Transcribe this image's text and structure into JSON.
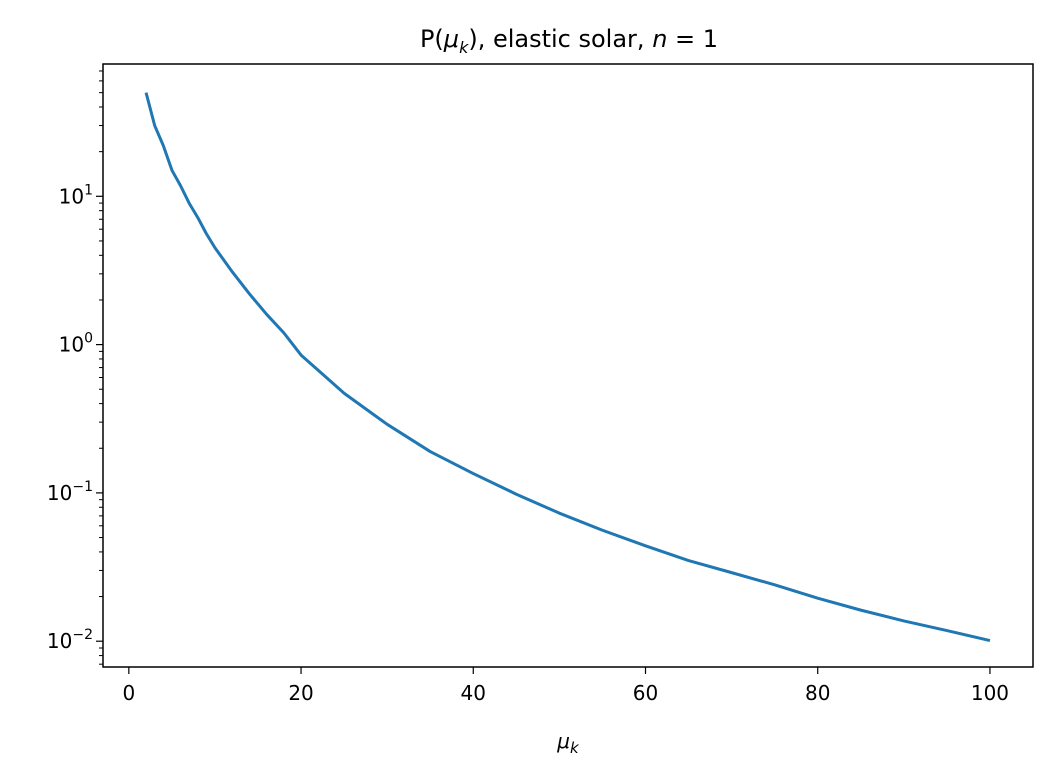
{
  "chart_data": {
    "type": "line",
    "title": {
      "prefix": "P(",
      "mu": "μ",
      "sub": "k",
      "suffix": "), elastic solar, ",
      "n": "n",
      "eq": " = 1"
    },
    "xlabel": {
      "mu": "μ",
      "sub": "k"
    },
    "ylabel": "",
    "x_scale": "linear",
    "y_scale": "log",
    "xlim": [
      -3,
      105
    ],
    "ylim": [
      0.0067,
      78
    ],
    "grid": false,
    "legend": "none",
    "x_ticks": [
      {
        "value": 0,
        "label": "0"
      },
      {
        "value": 20,
        "label": "20"
      },
      {
        "value": 40,
        "label": "40"
      },
      {
        "value": 60,
        "label": "60"
      },
      {
        "value": 80,
        "label": "80"
      },
      {
        "value": 100,
        "label": "100"
      }
    ],
    "y_ticks": [
      {
        "value": 0.01,
        "base": "10",
        "exp": "−2"
      },
      {
        "value": 0.1,
        "base": "10",
        "exp": "−1"
      },
      {
        "value": 1,
        "base": "10",
        "exp": "0"
      },
      {
        "value": 10,
        "base": "10",
        "exp": "1"
      }
    ],
    "series": [
      {
        "color": "#1f77b4",
        "x": [
          2,
          3,
          4,
          5,
          6,
          7,
          8,
          9,
          10,
          12,
          14,
          16,
          18,
          20,
          25,
          30,
          35,
          40,
          45,
          50,
          55,
          60,
          65,
          70,
          75,
          80,
          85,
          90,
          95,
          100
        ],
        "y": [
          50,
          30,
          22,
          15,
          11.8,
          9.0,
          7.2,
          5.6,
          4.5,
          3.1,
          2.2,
          1.6,
          1.2,
          0.85,
          0.47,
          0.29,
          0.19,
          0.135,
          0.098,
          0.073,
          0.056,
          0.044,
          0.035,
          0.029,
          0.024,
          0.0195,
          0.0162,
          0.0137,
          0.0118,
          0.0101
        ]
      }
    ]
  }
}
